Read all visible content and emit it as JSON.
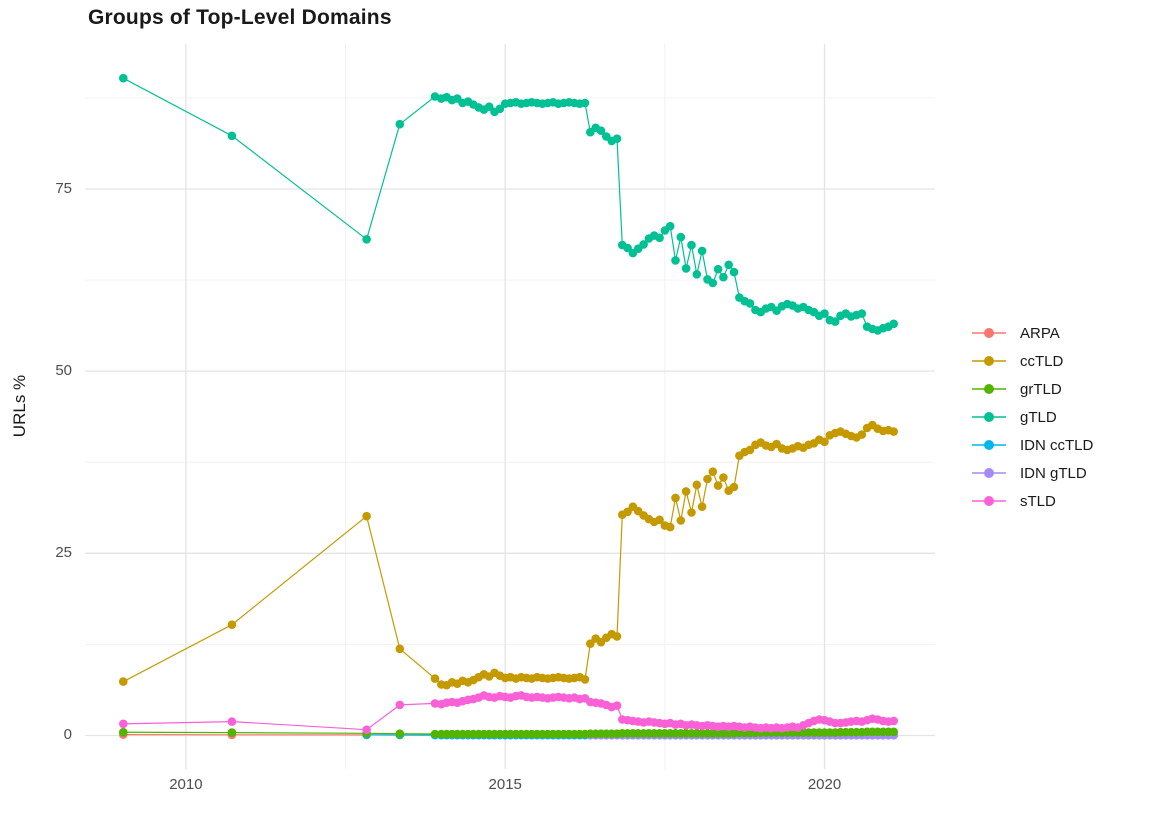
{
  "title": "Groups of Top-Level Domains",
  "chart_data": {
    "type": "line",
    "title": "Groups of Top-Level Domains",
    "xlabel": "",
    "ylabel": "URLs %",
    "xlim": [
      2008.42,
      2021.73
    ],
    "ylim": [
      -4.6,
      94.9
    ],
    "grid": "major+minor",
    "legend_position": "right",
    "x_ticks": [
      {
        "value": 2010,
        "label": "2010"
      },
      {
        "value": 2015,
        "label": "2015"
      },
      {
        "value": 2020,
        "label": "2020"
      }
    ],
    "x_minor": [
      2012.5,
      2017.5
    ],
    "y_ticks": [
      {
        "value": 0,
        "label": "0"
      },
      {
        "value": 25,
        "label": "25"
      },
      {
        "value": 50,
        "label": "50"
      },
      {
        "value": 75,
        "label": "75"
      }
    ],
    "y_minor": [
      12.5,
      37.5,
      62.5,
      87.5
    ],
    "legend": [
      {
        "name": "ARPA",
        "color": "#F8766D"
      },
      {
        "name": "ccTLD",
        "color": "#C49A00"
      },
      {
        "name": "grTLD",
        "color": "#53B400"
      },
      {
        "name": "gTLD",
        "color": "#00C094"
      },
      {
        "name": "IDN ccTLD",
        "color": "#00B6EB"
      },
      {
        "name": "IDN gTLD",
        "color": "#A58AFF"
      },
      {
        "name": "sTLD",
        "color": "#FB61D7"
      }
    ],
    "x": [
      2009.02,
      2010.72,
      2012.83,
      2013.35,
      2013.9,
      2014.0,
      2014.083,
      2014.167,
      2014.25,
      2014.333,
      2014.417,
      2014.5,
      2014.583,
      2014.667,
      2014.75,
      2014.833,
      2014.917,
      2015.0,
      2015.083,
      2015.167,
      2015.25,
      2015.333,
      2015.417,
      2015.5,
      2015.583,
      2015.667,
      2015.75,
      2015.833,
      2015.917,
      2016.0,
      2016.083,
      2016.167,
      2016.25,
      2016.333,
      2016.417,
      2016.5,
      2016.583,
      2016.667,
      2016.75,
      2016.833,
      2016.917,
      2017.0,
      2017.083,
      2017.167,
      2017.25,
      2017.333,
      2017.417,
      2017.5,
      2017.583,
      2017.667,
      2017.75,
      2017.833,
      2017.917,
      2018.0,
      2018.083,
      2018.167,
      2018.25,
      2018.333,
      2018.417,
      2018.5,
      2018.583,
      2018.667,
      2018.75,
      2018.833,
      2018.917,
      2019.0,
      2019.083,
      2019.167,
      2019.25,
      2019.333,
      2019.417,
      2019.5,
      2019.583,
      2019.667,
      2019.75,
      2019.833,
      2019.917,
      2020.0,
      2020.083,
      2020.167,
      2020.25,
      2020.333,
      2020.417,
      2020.5,
      2020.583,
      2020.667,
      2020.75,
      2020.833,
      2020.917,
      2021.0,
      2021.083
    ],
    "series": [
      {
        "name": "ARPA",
        "values": [
          0.12,
          0.1,
          0.08,
          0.07,
          0.06,
          0.05,
          0.05,
          0.05,
          0.05,
          0.05,
          0.05,
          0.05,
          0.05,
          0.05,
          0.05,
          0.05,
          0.05,
          0.05,
          0.05,
          0.05,
          0.05,
          0.05,
          0.05,
          0.05,
          0.05,
          0.05,
          0.05,
          0.05,
          0.05,
          0.05,
          0.05,
          0.05,
          0.05,
          0.05,
          0.05,
          0.05,
          0.05,
          0.05,
          0.05,
          0.05,
          0.05,
          0.05,
          0.05,
          0.05,
          0.05,
          0.05,
          0.05,
          0.05,
          0.05,
          0.05,
          0.05,
          0.05,
          0.05,
          0.05,
          0.05,
          0.05,
          0.05,
          0.05,
          0.05,
          0.05,
          0.05,
          0.05,
          0.05,
          0.05,
          0.05,
          0.05,
          0.05,
          0.05,
          0.05,
          0.05,
          0.05,
          0.05,
          0.05,
          0.05,
          0.05,
          0.05,
          0.05,
          0.05,
          0.05,
          0.05,
          0.05,
          0.05,
          0.05,
          0.05,
          0.05,
          0.05,
          0.05,
          0.05,
          0.05,
          0.05,
          0.05
        ]
      },
      {
        "name": "IDN ccTLD",
        "values": [
          null,
          null,
          0.1,
          0.07,
          0.05,
          0.05,
          0.05,
          0.05,
          0.05,
          0.05,
          0.05,
          0.05,
          0.05,
          0.05,
          0.05,
          0.05,
          0.05,
          0.05,
          0.05,
          0.05,
          0.05,
          0.05,
          0.05,
          0.05,
          0.05,
          0.05,
          0.05,
          0.05,
          0.05,
          0.05,
          0.05,
          0.05,
          0.05,
          0.05,
          0.05,
          0.05,
          0.05,
          0.05,
          0.05,
          0.05,
          0.05,
          0.05,
          0.05,
          0.05,
          0.05,
          0.05,
          0.05,
          0.05,
          0.05,
          0.05,
          0.05,
          0.05,
          0.05,
          0.05,
          0.05,
          0.05,
          0.05,
          0.05,
          0.05,
          0.05,
          0.05,
          0.05,
          0.05,
          0.05,
          0.05,
          0.05,
          0.05,
          0.05,
          0.05,
          0.05,
          0.05,
          0.05,
          0.05,
          0.05,
          0.05,
          0.05,
          0.05,
          0.05,
          0.05,
          0.05,
          0.05,
          0.05,
          0.05,
          0.05,
          0.05,
          0.05,
          0.05,
          0.05,
          0.05,
          0.05,
          0.05
        ]
      },
      {
        "name": "IDN gTLD",
        "values": [
          null,
          null,
          null,
          null,
          null,
          null,
          null,
          null,
          null,
          null,
          null,
          null,
          null,
          null,
          null,
          null,
          null,
          null,
          null,
          null,
          null,
          null,
          null,
          null,
          null,
          null,
          null,
          null,
          null,
          null,
          null,
          null,
          null,
          0.05,
          0.05,
          0.05,
          0.05,
          0.05,
          0.05,
          0.05,
          0.05,
          0.05,
          0.05,
          0.05,
          0.05,
          0.05,
          0.05,
          0.05,
          0.05,
          0.05,
          0.05,
          0.05,
          0.05,
          0.05,
          0.05,
          0.05,
          0.05,
          0.05,
          0.05,
          0.05,
          0.05,
          0.05,
          0.05,
          0.05,
          0.05,
          0.05,
          0.05,
          0.05,
          0.05,
          0.05,
          0.05,
          0.05,
          0.05,
          0.05,
          0.05,
          0.05,
          0.05,
          0.05,
          0.05,
          0.05,
          0.05,
          0.05,
          0.05,
          0.05,
          0.05,
          0.05,
          0.05,
          0.05,
          0.05,
          0.05,
          0.05
        ]
      },
      {
        "name": "grTLD",
        "values": [
          0.45,
          0.4,
          0.3,
          0.25,
          0.2,
          0.2,
          0.2,
          0.2,
          0.2,
          0.2,
          0.2,
          0.2,
          0.2,
          0.2,
          0.2,
          0.2,
          0.2,
          0.2,
          0.2,
          0.2,
          0.2,
          0.2,
          0.2,
          0.2,
          0.2,
          0.2,
          0.2,
          0.2,
          0.2,
          0.2,
          0.2,
          0.2,
          0.2,
          0.25,
          0.25,
          0.25,
          0.25,
          0.25,
          0.25,
          0.3,
          0.3,
          0.3,
          0.3,
          0.3,
          0.3,
          0.3,
          0.3,
          0.3,
          0.3,
          0.3,
          0.3,
          0.3,
          0.3,
          0.3,
          0.3,
          0.3,
          0.3,
          0.3,
          0.3,
          0.3,
          0.3,
          0.35,
          0.35,
          0.35,
          0.35,
          0.4,
          0.4,
          0.4,
          0.4,
          0.4,
          0.4,
          0.4,
          0.4,
          0.4,
          0.4,
          0.4,
          0.4,
          0.4,
          0.4,
          0.4,
          0.45,
          0.45,
          0.45,
          0.45,
          0.45,
          0.5,
          0.5,
          0.5,
          0.5,
          0.5,
          0.5
        ]
      },
      {
        "name": "ccTLD",
        "values": [
          7.4,
          15.2,
          30.1,
          11.9,
          7.8,
          7.0,
          6.9,
          7.3,
          7.1,
          7.5,
          7.3,
          7.6,
          8.0,
          8.4,
          8.1,
          8.6,
          8.2,
          7.9,
          8.0,
          7.8,
          8.0,
          7.9,
          7.8,
          8.0,
          7.9,
          7.8,
          7.9,
          8.0,
          7.9,
          7.8,
          7.9,
          8.0,
          7.7,
          12.6,
          13.3,
          12.8,
          13.4,
          13.9,
          13.6,
          30.3,
          30.7,
          31.4,
          30.8,
          30.2,
          29.7,
          29.3,
          29.6,
          28.8,
          28.6,
          32.6,
          29.5,
          33.5,
          30.6,
          34.4,
          31.4,
          35.2,
          36.2,
          34.3,
          35.4,
          33.6,
          34.1,
          38.4,
          38.9,
          39.2,
          39.9,
          40.2,
          39.8,
          39.6,
          40.0,
          39.4,
          39.2,
          39.4,
          39.7,
          39.5,
          39.9,
          40.1,
          40.6,
          40.3,
          41.2,
          41.5,
          41.7,
          41.4,
          41.1,
          40.9,
          41.3,
          42.2,
          42.6,
          42.1,
          41.8,
          41.9,
          41.7
        ]
      },
      {
        "name": "gTLD",
        "values": [
          90.2,
          82.3,
          68.1,
          83.9,
          87.7,
          87.4,
          87.6,
          87.2,
          87.4,
          86.8,
          87.0,
          86.6,
          86.2,
          85.9,
          86.3,
          85.6,
          86.0,
          86.7,
          86.8,
          86.9,
          86.7,
          86.8,
          86.9,
          86.8,
          86.7,
          86.8,
          86.9,
          86.7,
          86.8,
          86.9,
          86.8,
          86.7,
          86.8,
          82.8,
          83.4,
          83.0,
          82.2,
          81.6,
          81.9,
          67.3,
          66.9,
          66.2,
          66.8,
          67.4,
          68.2,
          68.6,
          68.3,
          69.3,
          69.9,
          65.2,
          68.4,
          64.1,
          67.3,
          63.3,
          66.5,
          62.6,
          62.1,
          64.0,
          62.9,
          64.6,
          63.6,
          60.1,
          59.6,
          59.3,
          58.4,
          58.1,
          58.6,
          58.8,
          58.3,
          58.9,
          59.2,
          59.0,
          58.6,
          58.8,
          58.4,
          58.1,
          57.6,
          57.9,
          57.0,
          56.8,
          57.6,
          57.9,
          57.5,
          57.7,
          57.9,
          56.1,
          55.8,
          55.6,
          55.9,
          56.1,
          56.5
        ]
      },
      {
        "name": "sTLD",
        "values": [
          1.6,
          1.9,
          0.8,
          4.2,
          4.4,
          4.3,
          4.5,
          4.6,
          4.5,
          4.7,
          4.9,
          5.0,
          5.2,
          5.5,
          5.3,
          5.2,
          5.4,
          5.3,
          5.2,
          5.4,
          5.5,
          5.3,
          5.2,
          5.3,
          5.2,
          5.1,
          5.2,
          5.3,
          5.2,
          5.1,
          5.2,
          5.0,
          5.1,
          4.6,
          4.5,
          4.4,
          4.2,
          3.9,
          4.1,
          2.2,
          2.1,
          2.0,
          1.9,
          1.8,
          1.9,
          1.8,
          1.7,
          1.6,
          1.7,
          1.5,
          1.6,
          1.4,
          1.5,
          1.4,
          1.3,
          1.4,
          1.3,
          1.2,
          1.3,
          1.2,
          1.3,
          1.2,
          1.1,
          1.2,
          1.1,
          1.0,
          1.1,
          1.0,
          1.1,
          1.0,
          1.1,
          1.2,
          1.1,
          1.4,
          1.7,
          2.0,
          2.2,
          2.1,
          1.9,
          1.7,
          1.7,
          1.8,
          1.9,
          2.0,
          1.9,
          2.1,
          2.3,
          2.2,
          2.0,
          1.9,
          2.0
        ]
      }
    ]
  }
}
